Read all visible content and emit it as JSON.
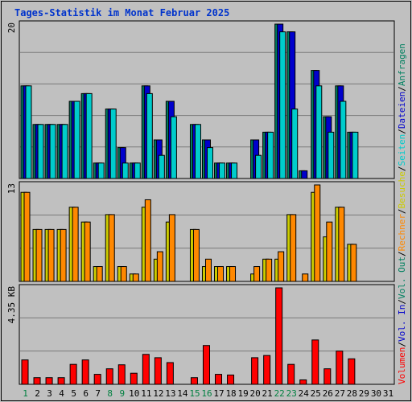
{
  "title": "Tages-Statistik im Monat Februar 2025",
  "colors": {
    "background": "#c0c0c0",
    "frame": "#000000",
    "title": "#0033cc",
    "weekday": "#000000",
    "weekend": "#008040",
    "hits": "#008060",
    "files": "#0000cc",
    "pages": "#00cccc",
    "visits": "#cccc00",
    "sites": "#ff8800",
    "kbytes": "#ff0000",
    "gridline": "#7a7a7a"
  },
  "legend_right": [
    {
      "text": "Anfragen",
      "color": "#008060"
    },
    {
      "text": "/",
      "color": "#000000"
    },
    {
      "text": "Dateien",
      "color": "#0000cc"
    },
    {
      "text": "/",
      "color": "#000000"
    },
    {
      "text": "Seiten",
      "color": "#00cccc"
    },
    {
      "text": "/",
      "color": "#000000"
    },
    {
      "text": "Besuche",
      "color": "#cccc00"
    },
    {
      "text": "/",
      "color": "#000000"
    },
    {
      "text": "Rechner",
      "color": "#ff8800"
    },
    {
      "text": "/",
      "color": "#000000"
    },
    {
      "text": "Vol. Out",
      "color": "#008060"
    },
    {
      "text": "/",
      "color": "#000000"
    },
    {
      "text": "Vol. In",
      "color": "#0000cc"
    },
    {
      "text": "/",
      "color": "#000000"
    },
    {
      "text": "Volumen",
      "color": "#ff0000"
    }
  ],
  "chart_data": [
    {
      "type": "bar",
      "panel": "top",
      "ymax_label": "20",
      "ylim": [
        0,
        20
      ],
      "x": [
        1,
        2,
        3,
        4,
        5,
        6,
        7,
        8,
        9,
        10,
        11,
        12,
        13,
        14,
        15,
        16,
        17,
        18,
        19,
        20,
        21,
        22,
        23,
        24,
        25,
        26,
        27,
        28,
        29,
        30,
        31
      ],
      "series": [
        {
          "key": "hits",
          "values": [
            12,
            7,
            7,
            7,
            10,
            11,
            2,
            9,
            4,
            2,
            12,
            5,
            10,
            0,
            7,
            5,
            2,
            2,
            0,
            5,
            6,
            20,
            19,
            1,
            14,
            8,
            12,
            6,
            0,
            0,
            0
          ]
        },
        {
          "key": "files",
          "values": [
            12,
            7,
            7,
            7,
            10,
            11,
            2,
            9,
            4,
            2,
            12,
            5,
            10,
            0,
            7,
            5,
            2,
            2,
            0,
            5,
            6,
            20,
            19,
            1,
            14,
            8,
            12,
            6,
            0,
            0,
            0
          ]
        },
        {
          "key": "pages",
          "values": [
            12,
            7,
            7,
            7,
            10,
            11,
            2,
            9,
            2,
            2,
            11,
            3,
            8,
            0,
            7,
            4,
            2,
            2,
            0,
            3,
            6,
            19,
            9,
            0,
            12,
            6,
            10,
            6,
            0,
            0,
            0
          ]
        }
      ]
    },
    {
      "type": "bar",
      "panel": "middle",
      "ymax_label": "13",
      "ylim": [
        0,
        13
      ],
      "x": [
        1,
        2,
        3,
        4,
        5,
        6,
        7,
        8,
        9,
        10,
        11,
        12,
        13,
        14,
        15,
        16,
        17,
        18,
        19,
        20,
        21,
        22,
        23,
        24,
        25,
        26,
        27,
        28,
        29,
        30,
        31
      ],
      "series": [
        {
          "key": "visits",
          "values": [
            12,
            7,
            7,
            7,
            10,
            8,
            2,
            9,
            2,
            1,
            10,
            3,
            8,
            0,
            7,
            2,
            2,
            2,
            0,
            1,
            3,
            3,
            9,
            0,
            12,
            6,
            10,
            5,
            0,
            0,
            0
          ]
        },
        {
          "key": "sites",
          "values": [
            12,
            7,
            7,
            7,
            10,
            8,
            2,
            9,
            2,
            1,
            11,
            4,
            9,
            0,
            7,
            3,
            2,
            2,
            0,
            2,
            3,
            4,
            9,
            1,
            13,
            8,
            10,
            5,
            0,
            0,
            0
          ]
        }
      ]
    },
    {
      "type": "bar",
      "panel": "bottom",
      "ymax_label": "4.35 KB",
      "ylim": [
        0,
        4.35
      ],
      "unit": "KB",
      "x": [
        1,
        2,
        3,
        4,
        5,
        6,
        7,
        8,
        9,
        10,
        11,
        12,
        13,
        14,
        15,
        16,
        17,
        18,
        19,
        20,
        21,
        22,
        23,
        24,
        25,
        26,
        27,
        28,
        29,
        30,
        31
      ],
      "series": [
        {
          "key": "kbytes",
          "values": [
            1.1,
            0.3,
            0.3,
            0.3,
            0.9,
            1.1,
            0.45,
            0.7,
            0.88,
            0.5,
            1.35,
            1.2,
            0.98,
            0,
            0.3,
            1.75,
            0.45,
            0.42,
            0,
            1.2,
            1.3,
            4.35,
            0.9,
            0.2,
            2.0,
            0.7,
            1.5,
            1.15,
            0,
            0,
            0
          ]
        }
      ]
    }
  ],
  "days": {
    "labels": [
      "1",
      "2",
      "3",
      "4",
      "5",
      "6",
      "7",
      "8",
      "9",
      "10",
      "11",
      "12",
      "13",
      "14",
      "15",
      "16",
      "17",
      "18",
      "19",
      "20",
      "21",
      "22",
      "23",
      "24",
      "25",
      "26",
      "27",
      "28",
      "29",
      "30",
      "31"
    ],
    "weekend": [
      1,
      8,
      9,
      15,
      16,
      22,
      23
    ]
  }
}
